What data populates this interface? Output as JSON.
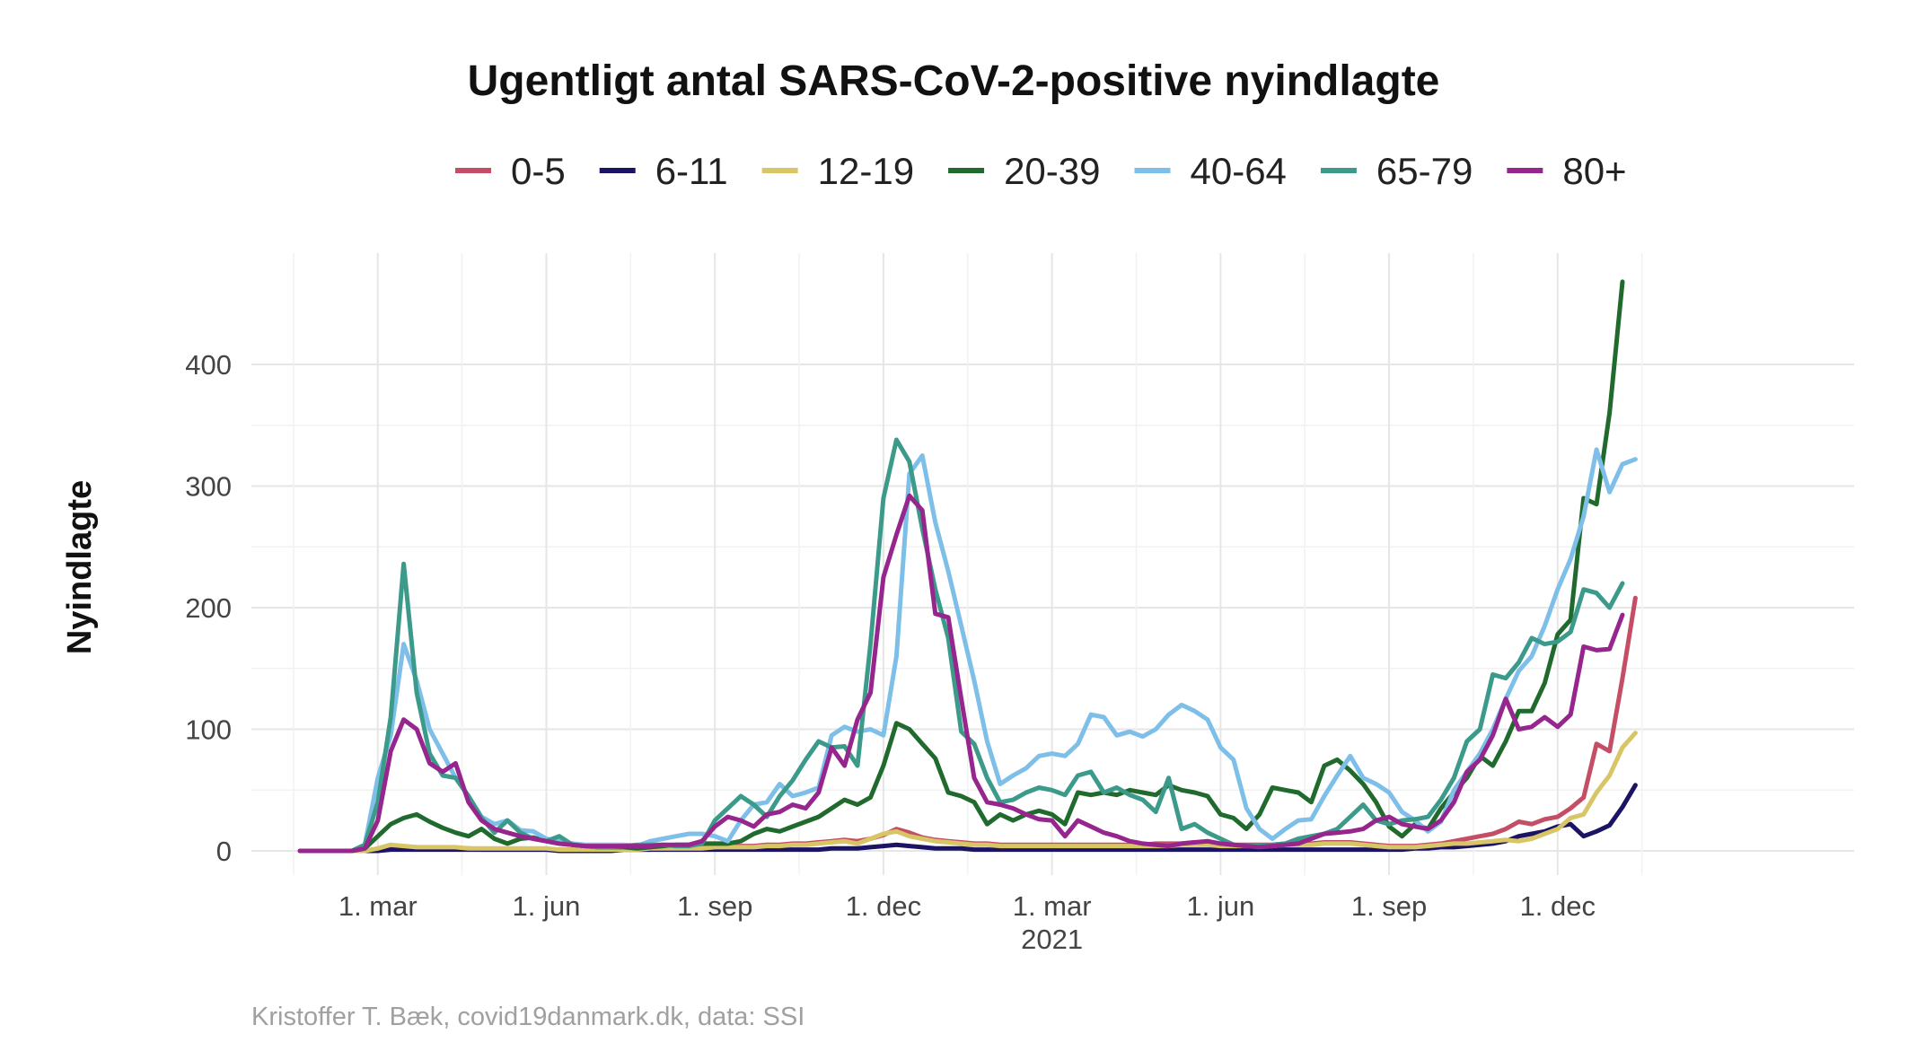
{
  "chart_data": {
    "type": "line",
    "title": "Ugentligt antal SARS-CoV-2-positive nyindlagte",
    "xlabel": "",
    "ylabel": "Nyindlagte",
    "caption": "Kristoffer T. Bæk, covid19danmark.dk, data: SSI",
    "ylim": [
      0,
      470
    ],
    "yticks": [
      0,
      100,
      200,
      300,
      400
    ],
    "xlim_weeks": [
      -4,
      98
    ],
    "grid": true,
    "legend_position": "top",
    "xticks": [
      {
        "week": 4,
        "label": "1. mar",
        "sublabel": ""
      },
      {
        "week": 17,
        "label": "1. jun",
        "sublabel": ""
      },
      {
        "week": 30,
        "label": "1. sep",
        "sublabel": ""
      },
      {
        "week": 43,
        "label": "1. dec",
        "sublabel": ""
      },
      {
        "week": 56,
        "label": "1. mar",
        "sublabel": "2021"
      },
      {
        "week": 69,
        "label": "1. jun",
        "sublabel": ""
      },
      {
        "week": 82,
        "label": "1. sep",
        "sublabel": ""
      },
      {
        "week": 95,
        "label": "1. dec",
        "sublabel": ""
      }
    ],
    "series": [
      {
        "name": "0-5",
        "color": "#c44e66",
        "values": [
          0,
          0,
          0,
          0,
          0,
          0,
          1,
          3,
          3,
          2,
          2,
          2,
          2,
          2,
          1,
          1,
          1,
          1,
          1,
          1,
          1,
          1,
          1,
          1,
          1,
          1,
          1,
          1,
          2,
          2,
          2,
          3,
          3,
          4,
          4,
          4,
          5,
          5,
          6,
          6,
          7,
          8,
          9,
          8,
          10,
          13,
          18,
          15,
          11,
          9,
          8,
          7,
          6,
          6,
          5,
          5,
          5,
          5,
          5,
          5,
          5,
          5,
          5,
          5,
          5,
          5,
          6,
          6,
          6,
          7,
          6,
          5,
          5,
          5,
          5,
          5,
          6,
          6,
          6,
          7,
          7,
          7,
          6,
          5,
          4,
          4,
          4,
          5,
          6,
          8,
          10,
          12,
          14,
          18,
          24,
          22,
          26,
          28,
          35,
          44,
          88,
          82,
          142,
          208
        ]
      },
      {
        "name": "6-11",
        "color": "#1b1464",
        "values": [
          0,
          0,
          0,
          0,
          0,
          0,
          0,
          1,
          1,
          1,
          1,
          1,
          1,
          1,
          1,
          1,
          1,
          1,
          1,
          1,
          0,
          0,
          0,
          0,
          0,
          1,
          1,
          1,
          1,
          1,
          1,
          1,
          1,
          1,
          1,
          1,
          1,
          1,
          1,
          1,
          1,
          2,
          2,
          2,
          3,
          4,
          5,
          4,
          3,
          2,
          2,
          2,
          1,
          1,
          1,
          1,
          1,
          1,
          1,
          1,
          1,
          1,
          1,
          1,
          1,
          1,
          1,
          1,
          1,
          1,
          1,
          1,
          1,
          1,
          1,
          1,
          1,
          1,
          1,
          1,
          1,
          1,
          1,
          1,
          1,
          1,
          2,
          2,
          3,
          3,
          4,
          5,
          6,
          8,
          12,
          14,
          16,
          20,
          22,
          12,
          16,
          21,
          36,
          54
        ]
      },
      {
        "name": "12-19",
        "color": "#d8c566",
        "values": [
          0,
          0,
          0,
          0,
          0,
          0,
          2,
          5,
          4,
          3,
          3,
          3,
          3,
          2,
          2,
          2,
          2,
          2,
          2,
          2,
          1,
          1,
          1,
          1,
          1,
          1,
          1,
          2,
          2,
          2,
          2,
          2,
          3,
          3,
          3,
          3,
          4,
          4,
          5,
          5,
          6,
          7,
          8,
          6,
          10,
          14,
          16,
          12,
          10,
          8,
          7,
          6,
          5,
          5,
          4,
          4,
          4,
          4,
          4,
          4,
          4,
          4,
          4,
          4,
          4,
          4,
          4,
          4,
          5,
          5,
          5,
          4,
          4,
          4,
          4,
          4,
          5,
          5,
          5,
          6,
          6,
          6,
          5,
          4,
          3,
          3,
          3,
          4,
          5,
          6,
          6,
          7,
          8,
          9,
          8,
          10,
          14,
          18,
          27,
          30,
          48,
          62,
          85,
          97
        ]
      },
      {
        "name": "20-39",
        "color": "#1f6a2c",
        "values": [
          0,
          0,
          0,
          0,
          0,
          2,
          12,
          22,
          27,
          30,
          24,
          19,
          15,
          12,
          18,
          10,
          6,
          10,
          11,
          8,
          6,
          5,
          4,
          3,
          3,
          3,
          2,
          3,
          4,
          5,
          5,
          6,
          6,
          6,
          8,
          14,
          18,
          16,
          20,
          24,
          28,
          35,
          42,
          38,
          44,
          70,
          105,
          100,
          88,
          76,
          48,
          45,
          40,
          22,
          30,
          25,
          30,
          33,
          30,
          22,
          48,
          46,
          48,
          46,
          50,
          48,
          46,
          54,
          50,
          48,
          45,
          30,
          27,
          18,
          30,
          52,
          50,
          48,
          40,
          70,
          75,
          66,
          55,
          40,
          20,
          12,
          22,
          18,
          35,
          48,
          60,
          78,
          70,
          90,
          115,
          115,
          138,
          178,
          190,
          290,
          285,
          360,
          468
        ]
      },
      {
        "name": "40-64",
        "color": "#7dbfe8",
        "values": [
          0,
          0,
          0,
          0,
          0,
          5,
          60,
          95,
          170,
          140,
          100,
          80,
          60,
          45,
          28,
          22,
          25,
          17,
          16,
          10,
          8,
          6,
          5,
          5,
          5,
          5,
          4,
          8,
          10,
          12,
          14,
          14,
          12,
          8,
          25,
          38,
          40,
          55,
          45,
          48,
          52,
          95,
          102,
          98,
          100,
          95,
          160,
          310,
          325,
          270,
          230,
          185,
          140,
          90,
          55,
          62,
          68,
          78,
          80,
          78,
          88,
          112,
          110,
          95,
          98,
          94,
          100,
          112,
          120,
          115,
          108,
          85,
          75,
          35,
          18,
          10,
          18,
          25,
          26,
          45,
          62,
          78,
          60,
          55,
          48,
          32,
          25,
          16,
          24,
          50,
          65,
          80,
          100,
          125,
          148,
          160,
          185,
          215,
          240,
          275,
          330,
          295,
          318,
          322
        ]
      },
      {
        "name": "65-79",
        "color": "#3c9a8a",
        "values": [
          0,
          0,
          0,
          0,
          0,
          5,
          40,
          110,
          236,
          130,
          80,
          62,
          60,
          45,
          27,
          15,
          25,
          15,
          10,
          8,
          12,
          5,
          4,
          3,
          3,
          4,
          5,
          5,
          5,
          4,
          4,
          6,
          25,
          35,
          45,
          38,
          28,
          45,
          58,
          75,
          90,
          85,
          86,
          70,
          170,
          290,
          338,
          320,
          265,
          215,
          175,
          98,
          88,
          60,
          40,
          42,
          48,
          52,
          50,
          46,
          62,
          65,
          48,
          52,
          46,
          42,
          32,
          60,
          18,
          22,
          15,
          10,
          5,
          4,
          4,
          5,
          6,
          10,
          12,
          14,
          18,
          28,
          38,
          25,
          22,
          25,
          26,
          28,
          42,
          60,
          90,
          100,
          145,
          142,
          155,
          175,
          170,
          172,
          180,
          215,
          212,
          200,
          220
        ]
      },
      {
        "name": "80+",
        "color": "#96258e",
        "values": [
          0,
          0,
          0,
          0,
          0,
          2,
          25,
          82,
          108,
          100,
          72,
          65,
          72,
          40,
          25,
          18,
          15,
          12,
          10,
          8,
          6,
          5,
          4,
          4,
          4,
          4,
          4,
          4,
          5,
          5,
          5,
          8,
          20,
          28,
          25,
          20,
          30,
          32,
          38,
          35,
          48,
          85,
          70,
          108,
          130,
          225,
          260,
          292,
          280,
          195,
          192,
          125,
          60,
          40,
          38,
          35,
          30,
          26,
          25,
          12,
          25,
          20,
          15,
          12,
          8,
          6,
          5,
          4,
          6,
          7,
          8,
          6,
          5,
          4,
          3,
          4,
          5,
          6,
          10,
          14,
          15,
          16,
          18,
          25,
          28,
          22,
          20,
          18,
          25,
          40,
          65,
          75,
          95,
          125,
          100,
          102,
          110,
          102,
          112,
          168,
          165,
          166,
          194
        ]
      }
    ]
  },
  "chart_ref": {}
}
